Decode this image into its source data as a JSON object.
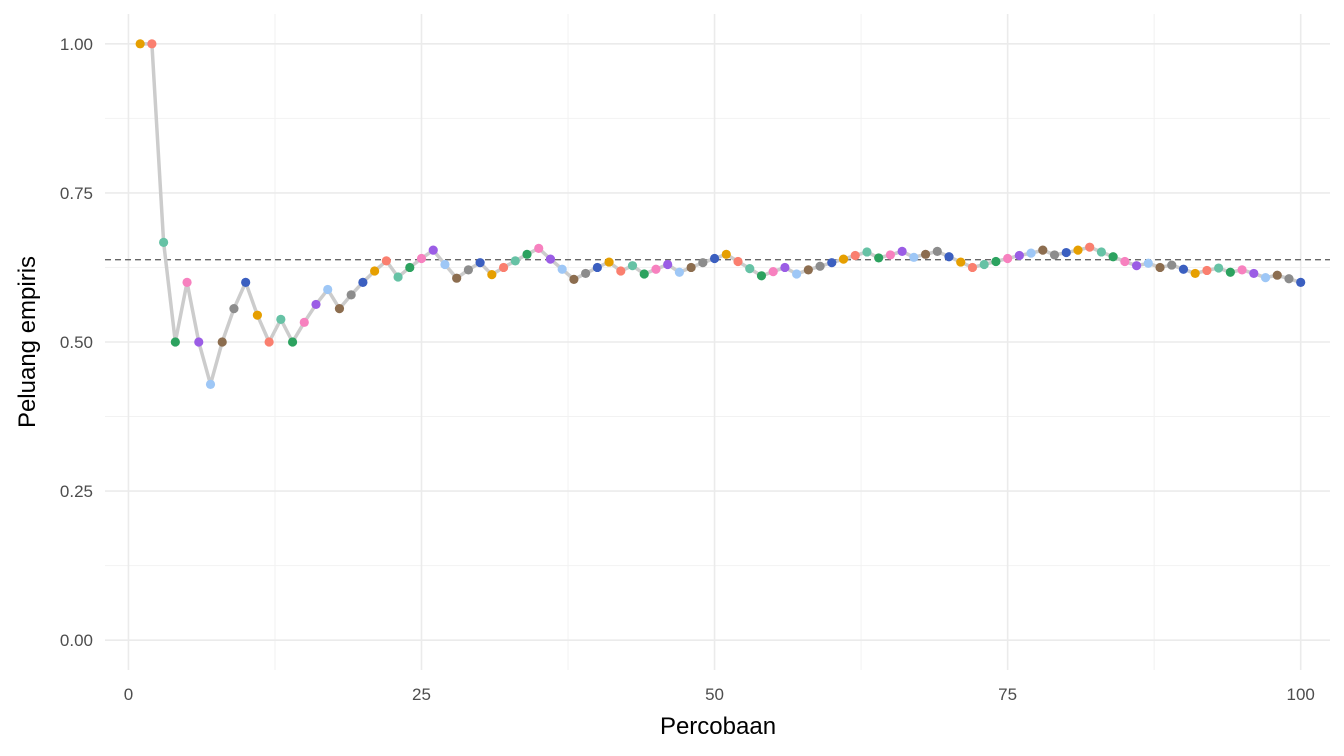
{
  "chart_data": {
    "type": "line",
    "xlabel": "Percobaan",
    "ylabel": "Peluang empiris",
    "xlim": [
      -2,
      102.5
    ],
    "ylim": [
      -0.05,
      1.05
    ],
    "x_ticks": [
      0,
      25,
      50,
      75,
      100
    ],
    "x_tick_labels": [
      "0",
      "25",
      "50",
      "75",
      "100"
    ],
    "y_ticks": [
      0,
      0.25,
      0.5,
      0.75,
      1.0
    ],
    "y_tick_labels": [
      "0.00",
      "0.25",
      "0.50",
      "0.75",
      "1.00"
    ],
    "grid": true,
    "reference_line": {
      "y": 0.638,
      "style": "dashed",
      "color": "#666666"
    },
    "line_color": "#cccccc",
    "point_palette": [
      "#E69F00",
      "#FA7F6F",
      "#66C2A5",
      "#2CA25F",
      "#F781BF",
      "#9B5DE5",
      "#9EC7F6",
      "#8C6D4F",
      "#8C8C8C",
      "#3B5FC0"
    ],
    "x": [
      1,
      2,
      3,
      4,
      5,
      6,
      7,
      8,
      9,
      10,
      11,
      12,
      13,
      14,
      15,
      16,
      17,
      18,
      19,
      20,
      21,
      22,
      23,
      24,
      25,
      26,
      27,
      28,
      29,
      30,
      31,
      32,
      33,
      34,
      35,
      36,
      37,
      38,
      39,
      40,
      41,
      42,
      43,
      44,
      45,
      46,
      47,
      48,
      49,
      50,
      51,
      52,
      53,
      54,
      55,
      56,
      57,
      58,
      59,
      60,
      61,
      62,
      63,
      64,
      65,
      66,
      67,
      68,
      69,
      70,
      71,
      72,
      73,
      74,
      75,
      76,
      77,
      78,
      79,
      80,
      81,
      82,
      83,
      84,
      85,
      86,
      87,
      88,
      89,
      90,
      91,
      92,
      93,
      94,
      95,
      96,
      97,
      98,
      99,
      100
    ],
    "y": [
      1.0,
      1.0,
      0.667,
      0.5,
      0.6,
      0.5,
      0.429,
      0.5,
      0.556,
      0.6,
      0.545,
      0.5,
      0.538,
      0.5,
      0.533,
      0.563,
      0.588,
      0.556,
      0.579,
      0.6,
      0.619,
      0.636,
      0.609,
      0.625,
      0.64,
      0.654,
      0.63,
      0.607,
      0.621,
      0.633,
      0.613,
      0.625,
      0.636,
      0.647,
      0.657,
      0.639,
      0.622,
      0.605,
      0.615,
      0.625,
      0.634,
      0.619,
      0.628,
      0.614,
      0.622,
      0.63,
      0.617,
      0.625,
      0.633,
      0.64,
      0.647,
      0.635,
      0.623,
      0.611,
      0.618,
      0.625,
      0.614,
      0.621,
      0.627,
      0.633,
      0.639,
      0.645,
      0.651,
      0.641,
      0.646,
      0.652,
      0.642,
      0.647,
      0.652,
      0.643,
      0.634,
      0.625,
      0.63,
      0.635,
      0.64,
      0.645,
      0.649,
      0.654,
      0.646,
      0.65,
      0.654,
      0.659,
      0.651,
      0.643,
      0.635,
      0.628,
      0.632,
      0.625,
      0.629,
      0.622,
      0.615,
      0.62,
      0.624,
      0.617,
      0.621,
      0.615,
      0.608,
      0.612,
      0.606,
      0.6
    ]
  }
}
